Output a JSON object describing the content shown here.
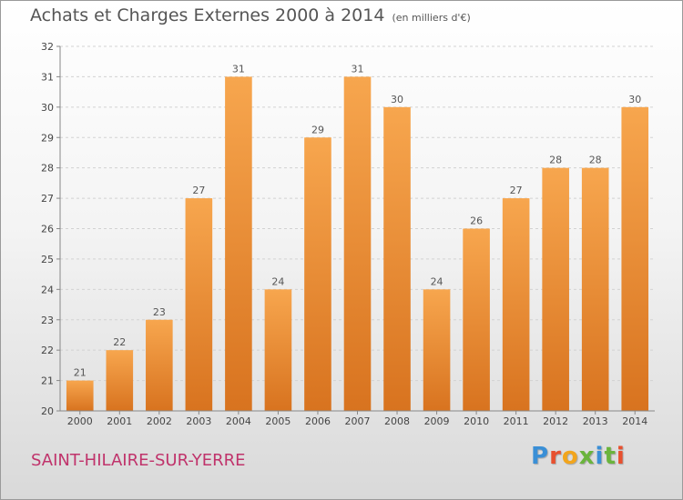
{
  "header": {
    "title": "Achats et Charges Externes 2000 à 2014",
    "unit": "(en milliers d'€)"
  },
  "footer": {
    "commune": "SAINT-HILAIRE-SUR-YERRE",
    "logo": "Proxiti"
  },
  "colors": {
    "bar_top": "#f7a64e",
    "bar_bottom": "#d8731f",
    "commune_text": "#c0336b",
    "logo_letters": [
      "#3a8fd6",
      "#e8502f",
      "#f2a51c",
      "#6ab43c",
      "#3a8fd6",
      "#6ab43c",
      "#e8502f"
    ]
  },
  "chart_data": {
    "type": "bar",
    "title": "Achats et Charges Externes 2000 à 2014",
    "subtitle": "(en milliers d'€)",
    "categories": [
      "2000",
      "2001",
      "2002",
      "2003",
      "2004",
      "2005",
      "2006",
      "2007",
      "2008",
      "2009",
      "2010",
      "2011",
      "2012",
      "2013",
      "2014"
    ],
    "values": [
      21,
      22,
      23,
      27,
      31,
      24,
      29,
      31,
      30,
      24,
      26,
      27,
      28,
      28,
      30
    ],
    "ylim": [
      20,
      32
    ],
    "yticks": [
      20,
      21,
      22,
      23,
      24,
      25,
      26,
      27,
      28,
      29,
      30,
      31,
      32
    ],
    "grid": true,
    "legend": "none"
  }
}
